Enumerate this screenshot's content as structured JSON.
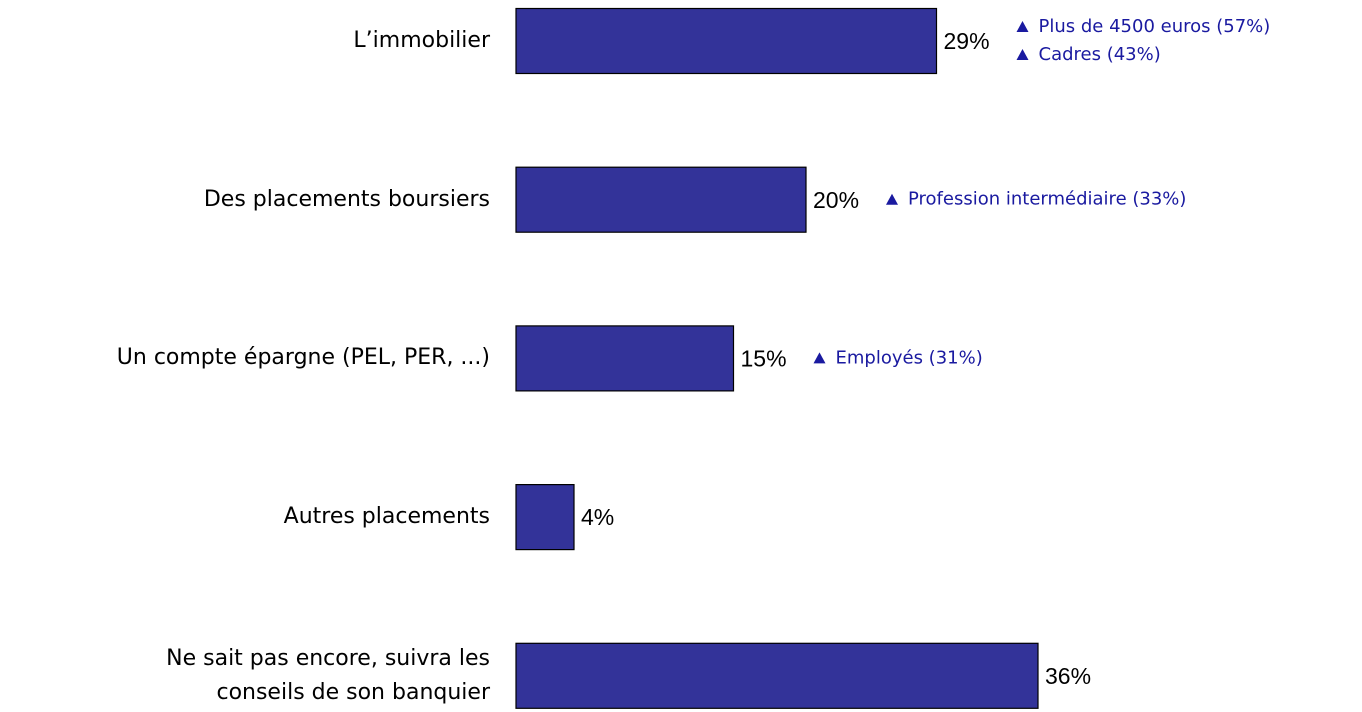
{
  "chart_data": {
    "type": "bar",
    "orientation": "horizontal",
    "categories": [
      "L’immobilier",
      "Des placements boursiers",
      "Un compte épargne (PEL, PER, ...)",
      "Autres placements",
      "Ne sait pas encore, suivra les conseils de son banquier"
    ],
    "values": [
      29,
      20,
      15,
      4,
      36
    ],
    "value_labels": [
      "29%",
      "20%",
      "15%",
      "4%",
      "36%"
    ],
    "color": "#333399",
    "annotation_color": "#1a1aa0",
    "annotations": [
      [
        "Plus de 4500 euros (57%)",
        "Cadres (43%)"
      ],
      [
        "Profession intermédiaire (33%)"
      ],
      [
        "Employés (31%)"
      ],
      [],
      []
    ]
  }
}
